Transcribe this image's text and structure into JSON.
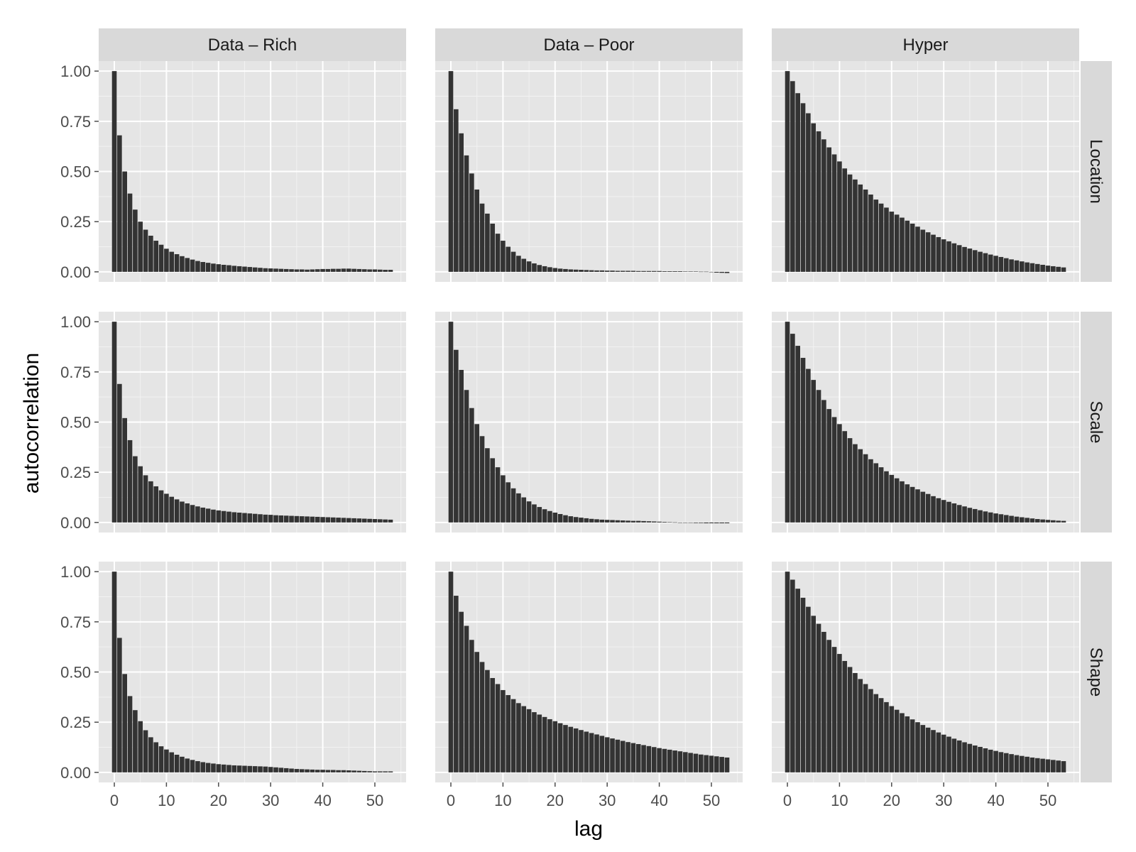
{
  "chart_data": {
    "type": "bar",
    "facet_layout": "3x3 grid, column strips on top, row strips on right",
    "xlabel": "lag",
    "ylabel": "autocorrelation",
    "xlim": [
      -3,
      56
    ],
    "ylim": [
      -0.05,
      1.05
    ],
    "x_ticks": [
      0,
      10,
      20,
      30,
      40,
      50
    ],
    "y_ticks": [
      0,
      0.25,
      0.5,
      0.75,
      1
    ],
    "y_tick_labels": [
      "0.00",
      "0.25",
      "0.50",
      "0.75",
      "1.00"
    ],
    "column_facets": [
      "Data – Rich",
      "Data – Poor",
      "Hyper"
    ],
    "row_facets": [
      "Location",
      "Scale",
      "Shape"
    ],
    "lags": "0 to 53 (one bar per lag)",
    "grid": true,
    "colors": {
      "bar": "#333333",
      "panel": "#e5e5e5",
      "gridline": "#ffffff",
      "strip": "#d9d9d9"
    },
    "panels": [
      {
        "row": "Location",
        "col": "Data – Rich",
        "values": [
          1.0,
          0.68,
          0.5,
          0.39,
          0.31,
          0.25,
          0.21,
          0.18,
          0.155,
          0.135,
          0.115,
          0.1,
          0.088,
          0.078,
          0.069,
          0.061,
          0.054,
          0.049,
          0.045,
          0.041,
          0.038,
          0.035,
          0.033,
          0.03,
          0.028,
          0.026,
          0.024,
          0.022,
          0.02,
          0.018,
          0.017,
          0.016,
          0.015,
          0.014,
          0.013,
          0.012,
          0.012,
          0.011,
          0.012,
          0.013,
          0.014,
          0.014,
          0.015,
          0.015,
          0.016,
          0.016,
          0.015,
          0.014,
          0.013,
          0.012,
          0.012,
          0.011,
          0.01,
          0.01
        ]
      },
      {
        "row": "Location",
        "col": "Data – Poor",
        "values": [
          1.0,
          0.81,
          0.69,
          0.58,
          0.49,
          0.41,
          0.34,
          0.29,
          0.24,
          0.19,
          0.155,
          0.125,
          0.1,
          0.08,
          0.065,
          0.052,
          0.042,
          0.034,
          0.028,
          0.023,
          0.019,
          0.016,
          0.014,
          0.012,
          0.011,
          0.01,
          0.009,
          0.008,
          0.007,
          0.007,
          0.006,
          0.006,
          0.005,
          0.005,
          0.005,
          0.005,
          0.004,
          0.004,
          0.004,
          0.004,
          0.004,
          0.003,
          0.003,
          0.003,
          0.003,
          0.002,
          0.002,
          0.002,
          0.001,
          0.001,
          -0.002,
          -0.004,
          -0.005,
          -0.006
        ]
      },
      {
        "row": "Location",
        "col": "Hyper",
        "values": [
          1.0,
          0.95,
          0.89,
          0.84,
          0.79,
          0.74,
          0.7,
          0.66,
          0.62,
          0.585,
          0.55,
          0.515,
          0.485,
          0.46,
          0.435,
          0.41,
          0.385,
          0.36,
          0.34,
          0.32,
          0.3,
          0.285,
          0.27,
          0.255,
          0.24,
          0.225,
          0.21,
          0.197,
          0.185,
          0.173,
          0.162,
          0.152,
          0.142,
          0.133,
          0.124,
          0.116,
          0.108,
          0.1,
          0.093,
          0.086,
          0.08,
          0.074,
          0.068,
          0.062,
          0.057,
          0.052,
          0.047,
          0.043,
          0.039,
          0.035,
          0.031,
          0.028,
          0.025,
          0.022
        ]
      },
      {
        "row": "Scale",
        "col": "Data – Rich",
        "values": [
          1.0,
          0.69,
          0.52,
          0.41,
          0.33,
          0.28,
          0.235,
          0.205,
          0.18,
          0.16,
          0.143,
          0.128,
          0.115,
          0.104,
          0.095,
          0.087,
          0.08,
          0.074,
          0.069,
          0.064,
          0.06,
          0.057,
          0.054,
          0.051,
          0.049,
          0.047,
          0.045,
          0.043,
          0.041,
          0.039,
          0.038,
          0.036,
          0.035,
          0.034,
          0.033,
          0.032,
          0.031,
          0.03,
          0.029,
          0.028,
          0.027,
          0.026,
          0.025,
          0.024,
          0.023,
          0.022,
          0.021,
          0.02,
          0.019,
          0.018,
          0.017,
          0.016,
          0.015,
          0.014
        ]
      },
      {
        "row": "Scale",
        "col": "Data – Poor",
        "values": [
          1.0,
          0.86,
          0.76,
          0.66,
          0.57,
          0.49,
          0.43,
          0.37,
          0.32,
          0.275,
          0.235,
          0.2,
          0.17,
          0.145,
          0.125,
          0.105,
          0.09,
          0.077,
          0.066,
          0.057,
          0.049,
          0.042,
          0.036,
          0.031,
          0.027,
          0.024,
          0.021,
          0.018,
          0.016,
          0.014,
          0.013,
          0.012,
          0.011,
          0.01,
          0.009,
          0.008,
          0.008,
          0.007,
          0.006,
          0.005,
          0.004,
          0.003,
          0.002,
          0.001,
          0.0,
          -0.001,
          -0.002,
          -0.003,
          -0.003,
          -0.004,
          -0.004,
          -0.004,
          -0.004,
          -0.004
        ]
      },
      {
        "row": "Scale",
        "col": "Hyper",
        "values": [
          1.0,
          0.94,
          0.88,
          0.82,
          0.765,
          0.71,
          0.66,
          0.61,
          0.565,
          0.525,
          0.49,
          0.455,
          0.42,
          0.39,
          0.365,
          0.34,
          0.315,
          0.295,
          0.275,
          0.255,
          0.237,
          0.22,
          0.205,
          0.19,
          0.177,
          0.165,
          0.153,
          0.142,
          0.131,
          0.121,
          0.112,
          0.103,
          0.095,
          0.087,
          0.08,
          0.073,
          0.067,
          0.061,
          0.055,
          0.05,
          0.045,
          0.041,
          0.037,
          0.033,
          0.029,
          0.026,
          0.023,
          0.02,
          0.017,
          0.015,
          0.013,
          0.011,
          0.009,
          0.008
        ]
      },
      {
        "row": "Shape",
        "col": "Data – Rich",
        "values": [
          1.0,
          0.67,
          0.49,
          0.38,
          0.31,
          0.255,
          0.21,
          0.175,
          0.15,
          0.13,
          0.114,
          0.1,
          0.088,
          0.078,
          0.069,
          0.062,
          0.056,
          0.051,
          0.047,
          0.044,
          0.041,
          0.039,
          0.037,
          0.035,
          0.034,
          0.033,
          0.032,
          0.031,
          0.03,
          0.029,
          0.027,
          0.025,
          0.023,
          0.021,
          0.019,
          0.017,
          0.016,
          0.015,
          0.014,
          0.013,
          0.013,
          0.012,
          0.012,
          0.011,
          0.011,
          0.01,
          0.009,
          0.008,
          0.007,
          0.006,
          0.005,
          0.005,
          0.005,
          0.005
        ]
      },
      {
        "row": "Shape",
        "col": "Data – Poor",
        "values": [
          1.0,
          0.88,
          0.8,
          0.73,
          0.66,
          0.6,
          0.55,
          0.51,
          0.47,
          0.44,
          0.41,
          0.385,
          0.365,
          0.345,
          0.33,
          0.315,
          0.3,
          0.288,
          0.276,
          0.265,
          0.255,
          0.245,
          0.236,
          0.227,
          0.219,
          0.211,
          0.203,
          0.196,
          0.189,
          0.182,
          0.175,
          0.169,
          0.163,
          0.157,
          0.151,
          0.146,
          0.141,
          0.136,
          0.131,
          0.126,
          0.121,
          0.117,
          0.113,
          0.109,
          0.105,
          0.101,
          0.097,
          0.093,
          0.089,
          0.086,
          0.083,
          0.08,
          0.077,
          0.074
        ]
      },
      {
        "row": "Shape",
        "col": "Hyper",
        "values": [
          1.0,
          0.96,
          0.915,
          0.87,
          0.825,
          0.78,
          0.74,
          0.7,
          0.66,
          0.625,
          0.59,
          0.555,
          0.525,
          0.495,
          0.465,
          0.44,
          0.415,
          0.39,
          0.37,
          0.35,
          0.33,
          0.312,
          0.295,
          0.279,
          0.264,
          0.25,
          0.236,
          0.223,
          0.211,
          0.199,
          0.188,
          0.178,
          0.168,
          0.159,
          0.15,
          0.142,
          0.134,
          0.127,
          0.12,
          0.113,
          0.107,
          0.101,
          0.096,
          0.091,
          0.086,
          0.082,
          0.078,
          0.074,
          0.071,
          0.068,
          0.065,
          0.062,
          0.059,
          0.056
        ]
      }
    ]
  }
}
